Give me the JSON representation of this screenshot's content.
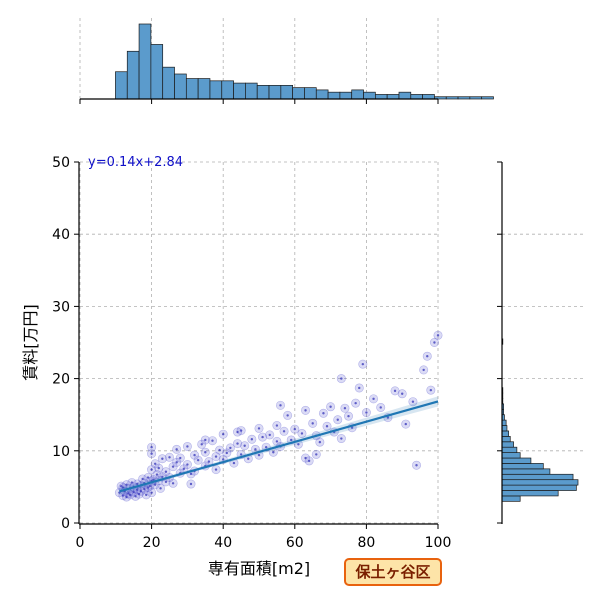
{
  "chart_data": {
    "type": "scatter",
    "xlabel": "専有面積[m2]",
    "ylabel": "賃料[万円]",
    "xlim": [
      0,
      100
    ],
    "ylim": [
      0,
      50
    ],
    "xticks": [
      0,
      20,
      40,
      60,
      80,
      100
    ],
    "yticks": [
      0,
      10,
      20,
      30,
      40,
      50
    ],
    "grid": true,
    "regression": {
      "label": "y=0.14x+2.84",
      "slope": 0.14,
      "intercept": 2.84,
      "x_range": [
        11,
        100
      ]
    },
    "series": [
      {
        "points": [
          [
            11,
            4.2
          ],
          [
            11.5,
            5.1
          ],
          [
            12,
            3.8
          ],
          [
            12,
            4.9
          ],
          [
            12.5,
            4.4
          ],
          [
            13,
            3.6
          ],
          [
            13,
            5.3
          ],
          [
            13.5,
            4.1
          ],
          [
            14,
            4.8
          ],
          [
            14,
            3.9
          ],
          [
            14.5,
            5.6
          ],
          [
            15,
            4.3
          ],
          [
            15,
            5.0
          ],
          [
            15.5,
            3.7
          ],
          [
            16,
            4.6
          ],
          [
            16,
            5.4
          ],
          [
            16.5,
            4.0
          ],
          [
            17,
            5.2
          ],
          [
            17,
            4.4
          ],
          [
            17.5,
            6.1
          ],
          [
            18,
            4.7
          ],
          [
            18,
            5.5
          ],
          [
            18.5,
            3.9
          ],
          [
            19,
            4.9
          ],
          [
            19,
            6.3
          ],
          [
            19.5,
            5.1
          ],
          [
            20,
            4.2
          ],
          [
            20,
            5.8
          ],
          [
            20,
            7.4
          ],
          [
            20,
            9.6
          ],
          [
            20,
            10.5
          ],
          [
            20.5,
            6.0
          ],
          [
            21,
            5.3
          ],
          [
            21,
            8.2
          ],
          [
            21.5,
            6.7
          ],
          [
            22,
            5.9
          ],
          [
            22,
            7.6
          ],
          [
            22.5,
            4.8
          ],
          [
            23,
            6.4
          ],
          [
            23,
            8.9
          ],
          [
            24,
            5.7
          ],
          [
            24,
            7.1
          ],
          [
            25,
            6.3
          ],
          [
            25,
            9.1
          ],
          [
            26,
            7.8
          ],
          [
            26,
            5.5
          ],
          [
            27,
            8.4
          ],
          [
            27,
            10.2
          ],
          [
            28,
            6.9
          ],
          [
            28,
            9.0
          ],
          [
            29,
            7.5
          ],
          [
            30,
            8.1
          ],
          [
            30,
            10.6
          ],
          [
            31,
            6.8
          ],
          [
            32,
            9.4
          ],
          [
            32,
            7.2
          ],
          [
            33,
            8.7
          ],
          [
            34,
            10.9
          ],
          [
            35,
            7.9
          ],
          [
            35,
            9.8
          ],
          [
            36,
            8.5
          ],
          [
            37,
            11.4
          ],
          [
            38,
            9.2
          ],
          [
            38,
            7.4
          ],
          [
            39,
            10.1
          ],
          [
            40,
            12.3
          ],
          [
            40,
            8.8
          ],
          [
            41,
            9.7
          ],
          [
            42,
            10.4
          ],
          [
            43,
            8.3
          ],
          [
            44,
            11.0
          ],
          [
            45,
            9.5
          ],
          [
            45,
            12.8
          ],
          [
            46,
            10.7
          ],
          [
            47,
            8.9
          ],
          [
            48,
            11.6
          ],
          [
            49,
            10.2
          ],
          [
            50,
            13.1
          ],
          [
            50,
            9.4
          ],
          [
            51,
            11.9
          ],
          [
            52,
            10.5
          ],
          [
            53,
            12.2
          ],
          [
            54,
            9.8
          ],
          [
            55,
            13.5
          ],
          [
            55,
            11.3
          ],
          [
            56,
            10.6
          ],
          [
            57,
            12.7
          ],
          [
            58,
            14.9
          ],
          [
            59,
            11.5
          ],
          [
            60,
            13.0
          ],
          [
            61,
            10.9
          ],
          [
            62,
            12.4
          ],
          [
            63,
            15.6
          ],
          [
            64,
            8.6
          ],
          [
            65,
            13.8
          ],
          [
            66,
            12.1
          ],
          [
            67,
            11.2
          ],
          [
            68,
            15.2
          ],
          [
            69,
            13.4
          ],
          [
            70,
            16.1
          ],
          [
            71,
            12.6
          ],
          [
            72,
            14.3
          ],
          [
            73,
            11.7
          ],
          [
            74,
            15.9
          ],
          [
            75,
            14.8
          ],
          [
            76,
            13.2
          ],
          [
            77,
            16.6
          ],
          [
            78,
            18.7
          ],
          [
            79,
            22.0
          ],
          [
            80,
            15.3
          ],
          [
            82,
            17.2
          ],
          [
            84,
            16.0
          ],
          [
            86,
            14.6
          ],
          [
            88,
            18.3
          ],
          [
            90,
            17.9
          ],
          [
            91,
            13.7
          ],
          [
            93,
            16.8
          ],
          [
            94,
            8.0
          ],
          [
            96,
            21.2
          ],
          [
            97,
            23.1
          ],
          [
            98,
            18.4
          ],
          [
            99,
            25.0
          ],
          [
            100,
            26.0
          ],
          [
            73,
            20.0
          ],
          [
            66,
            9.5
          ],
          [
            35,
            11.5
          ],
          [
            44,
            12.6
          ],
          [
            56,
            16.3
          ],
          [
            63,
            9.0
          ],
          [
            31,
            5.4
          ]
        ]
      }
    ],
    "x_marginal_hist": {
      "bins_start": 0,
      "bin_width": 3.3,
      "counts": [
        0,
        0,
        0,
        12,
        21,
        33,
        24,
        14,
        11,
        9,
        9,
        8,
        8,
        7,
        7,
        6,
        6,
        6,
        5,
        5,
        4,
        3,
        3,
        4,
        3,
        2,
        2,
        3,
        2,
        2,
        1,
        1,
        1,
        1,
        1
      ]
    },
    "y_marginal_hist": {
      "bins_start": 3,
      "bin_width": 0.75,
      "counts": [
        22,
        68,
        90,
        92,
        86,
        58,
        50,
        35,
        22,
        18,
        14,
        10,
        8,
        6,
        5,
        3,
        2,
        2,
        1,
        1,
        1,
        0,
        0,
        0,
        0,
        0,
        0,
        0,
        0,
        1
      ]
    }
  },
  "badge": {
    "label": "保土ヶ谷区"
  }
}
